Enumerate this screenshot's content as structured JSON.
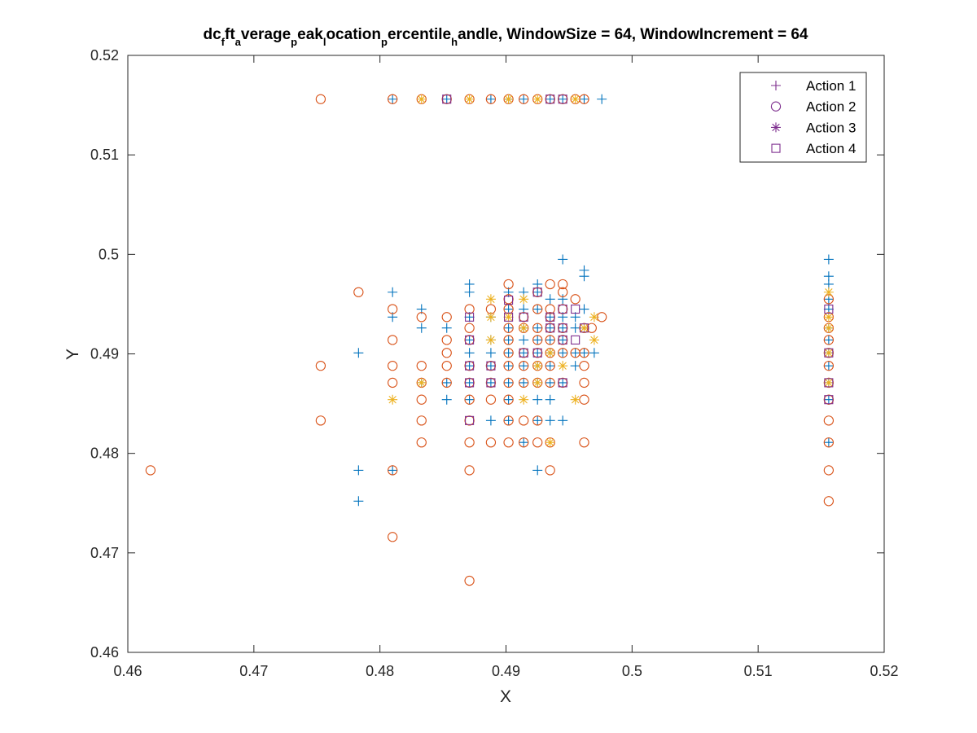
{
  "chart_data": {
    "type": "scatter",
    "title_parts": [
      {
        "t": "dc",
        "sub": false
      },
      {
        "t": "f",
        "sub": true
      },
      {
        "t": "ft",
        "sub": false
      },
      {
        "t": "a",
        "sub": true
      },
      {
        "t": "verage",
        "sub": false
      },
      {
        "t": "p",
        "sub": true
      },
      {
        "t": "eak",
        "sub": false
      },
      {
        "t": "l",
        "sub": true
      },
      {
        "t": "ocation",
        "sub": false
      },
      {
        "t": "p",
        "sub": true
      },
      {
        "t": "ercentile",
        "sub": false
      },
      {
        "t": "h",
        "sub": true
      },
      {
        "t": "andle, WindowSize = 64, WindowIncrement = 64",
        "sub": false
      }
    ],
    "xlabel": "X",
    "ylabel": "Y",
    "xlim": [
      0.46,
      0.52
    ],
    "ylim": [
      0.46,
      0.52
    ],
    "xticks": [
      0.46,
      0.47,
      0.48,
      0.49,
      0.5,
      0.51,
      0.52
    ],
    "yticks": [
      0.46,
      0.47,
      0.48,
      0.49,
      0.5,
      0.51,
      0.52
    ],
    "xtick_labels": [
      "0.46",
      "0.47",
      "0.48",
      "0.49",
      "0.5",
      "0.51",
      "0.52"
    ],
    "ytick_labels": [
      "0.46",
      "0.47",
      "0.48",
      "0.49",
      "0.5",
      "0.51",
      "0.52"
    ],
    "grid": false,
    "legend_position": "top-right",
    "legend_color": "#7E2F8E",
    "series": [
      {
        "name": "Action 1",
        "marker": "plus",
        "color": "#0072BD",
        "points": [
          [
            0.481,
            0.5156
          ],
          [
            0.4853,
            0.5156
          ],
          [
            0.4888,
            0.5156
          ],
          [
            0.4902,
            0.5156
          ],
          [
            0.4914,
            0.5156
          ],
          [
            0.4935,
            0.5156
          ],
          [
            0.4945,
            0.5156
          ],
          [
            0.4962,
            0.5156
          ],
          [
            0.4976,
            0.5156
          ],
          [
            0.4783,
            0.4901
          ],
          [
            0.4783,
            0.4783
          ],
          [
            0.4783,
            0.4752
          ],
          [
            0.481,
            0.4962
          ],
          [
            0.481,
            0.4937
          ],
          [
            0.481,
            0.4783
          ],
          [
            0.4833,
            0.4945
          ],
          [
            0.4833,
            0.4926
          ],
          [
            0.4833,
            0.4871
          ],
          [
            0.4853,
            0.4926
          ],
          [
            0.4853,
            0.4871
          ],
          [
            0.4853,
            0.4854
          ],
          [
            0.4871,
            0.497
          ],
          [
            0.4871,
            0.4962
          ],
          [
            0.4871,
            0.4937
          ],
          [
            0.4871,
            0.4914
          ],
          [
            0.4871,
            0.4901
          ],
          [
            0.4871,
            0.4888
          ],
          [
            0.4871,
            0.4871
          ],
          [
            0.4871,
            0.4854
          ],
          [
            0.4888,
            0.4937
          ],
          [
            0.4888,
            0.4914
          ],
          [
            0.4888,
            0.4901
          ],
          [
            0.4888,
            0.4888
          ],
          [
            0.4888,
            0.4871
          ],
          [
            0.4888,
            0.4833
          ],
          [
            0.4902,
            0.4962
          ],
          [
            0.4902,
            0.4945
          ],
          [
            0.4902,
            0.4926
          ],
          [
            0.4902,
            0.4914
          ],
          [
            0.4902,
            0.4901
          ],
          [
            0.4902,
            0.4888
          ],
          [
            0.4902,
            0.4871
          ],
          [
            0.4902,
            0.4854
          ],
          [
            0.4902,
            0.4833
          ],
          [
            0.4914,
            0.4962
          ],
          [
            0.4914,
            0.4945
          ],
          [
            0.4914,
            0.4926
          ],
          [
            0.4914,
            0.4914
          ],
          [
            0.4914,
            0.4901
          ],
          [
            0.4914,
            0.4888
          ],
          [
            0.4914,
            0.4871
          ],
          [
            0.4914,
            0.4811
          ],
          [
            0.4925,
            0.497
          ],
          [
            0.4925,
            0.4962
          ],
          [
            0.4925,
            0.4945
          ],
          [
            0.4925,
            0.4926
          ],
          [
            0.4925,
            0.4914
          ],
          [
            0.4925,
            0.4901
          ],
          [
            0.4925,
            0.4888
          ],
          [
            0.4925,
            0.4871
          ],
          [
            0.4925,
            0.4854
          ],
          [
            0.4925,
            0.4833
          ],
          [
            0.4925,
            0.4783
          ],
          [
            0.4935,
            0.4955
          ],
          [
            0.4935,
            0.4937
          ],
          [
            0.4935,
            0.4926
          ],
          [
            0.4935,
            0.4914
          ],
          [
            0.4935,
            0.4901
          ],
          [
            0.4935,
            0.4888
          ],
          [
            0.4935,
            0.4871
          ],
          [
            0.4935,
            0.4854
          ],
          [
            0.4935,
            0.4833
          ],
          [
            0.4945,
            0.4995
          ],
          [
            0.4945,
            0.4955
          ],
          [
            0.4945,
            0.4937
          ],
          [
            0.4945,
            0.4926
          ],
          [
            0.4945,
            0.4914
          ],
          [
            0.4945,
            0.4901
          ],
          [
            0.4945,
            0.4871
          ],
          [
            0.4945,
            0.4833
          ],
          [
            0.4955,
            0.4937
          ],
          [
            0.4955,
            0.4926
          ],
          [
            0.4955,
            0.4901
          ],
          [
            0.4955,
            0.4888
          ],
          [
            0.4962,
            0.4984
          ],
          [
            0.4962,
            0.4978
          ],
          [
            0.4962,
            0.4945
          ],
          [
            0.4962,
            0.4926
          ],
          [
            0.4962,
            0.4901
          ],
          [
            0.497,
            0.4901
          ],
          [
            0.5156,
            0.4995
          ],
          [
            0.5156,
            0.4978
          ],
          [
            0.5156,
            0.497
          ],
          [
            0.5156,
            0.4955
          ],
          [
            0.5156,
            0.4945
          ],
          [
            0.5156,
            0.4926
          ],
          [
            0.5156,
            0.4914
          ],
          [
            0.5156,
            0.4901
          ],
          [
            0.5156,
            0.4888
          ],
          [
            0.5156,
            0.4871
          ],
          [
            0.5156,
            0.4854
          ],
          [
            0.5156,
            0.4811
          ]
        ]
      },
      {
        "name": "Action 2",
        "marker": "circle",
        "color": "#D95319",
        "points": [
          [
            0.4753,
            0.5156
          ],
          [
            0.481,
            0.5156
          ],
          [
            0.4833,
            0.5156
          ],
          [
            0.4853,
            0.5156
          ],
          [
            0.4871,
            0.5156
          ],
          [
            0.4888,
            0.5156
          ],
          [
            0.4902,
            0.5156
          ],
          [
            0.4914,
            0.5156
          ],
          [
            0.4925,
            0.5156
          ],
          [
            0.4935,
            0.5156
          ],
          [
            0.4945,
            0.5156
          ],
          [
            0.4955,
            0.5156
          ],
          [
            0.4962,
            0.5156
          ],
          [
            0.4618,
            0.4783
          ],
          [
            0.4753,
            0.4888
          ],
          [
            0.4753,
            0.4833
          ],
          [
            0.4783,
            0.4962
          ],
          [
            0.481,
            0.4945
          ],
          [
            0.481,
            0.4914
          ],
          [
            0.481,
            0.4888
          ],
          [
            0.481,
            0.4871
          ],
          [
            0.481,
            0.4783
          ],
          [
            0.481,
            0.4716
          ],
          [
            0.4833,
            0.4937
          ],
          [
            0.4833,
            0.4888
          ],
          [
            0.4833,
            0.4871
          ],
          [
            0.4833,
            0.4854
          ],
          [
            0.4833,
            0.4833
          ],
          [
            0.4833,
            0.4811
          ],
          [
            0.4853,
            0.4937
          ],
          [
            0.4853,
            0.4914
          ],
          [
            0.4853,
            0.4901
          ],
          [
            0.4853,
            0.4888
          ],
          [
            0.4853,
            0.4871
          ],
          [
            0.4871,
            0.4945
          ],
          [
            0.4871,
            0.4926
          ],
          [
            0.4871,
            0.4914
          ],
          [
            0.4871,
            0.4888
          ],
          [
            0.4871,
            0.4871
          ],
          [
            0.4871,
            0.4854
          ],
          [
            0.4871,
            0.4833
          ],
          [
            0.4871,
            0.4811
          ],
          [
            0.4871,
            0.4783
          ],
          [
            0.4871,
            0.4672
          ],
          [
            0.4888,
            0.4945
          ],
          [
            0.4888,
            0.4888
          ],
          [
            0.4888,
            0.4871
          ],
          [
            0.4888,
            0.4854
          ],
          [
            0.4888,
            0.4811
          ],
          [
            0.4902,
            0.497
          ],
          [
            0.4902,
            0.4955
          ],
          [
            0.4902,
            0.4945
          ],
          [
            0.4902,
            0.4926
          ],
          [
            0.4902,
            0.4914
          ],
          [
            0.4902,
            0.4901
          ],
          [
            0.4902,
            0.4888
          ],
          [
            0.4902,
            0.4871
          ],
          [
            0.4902,
            0.4854
          ],
          [
            0.4902,
            0.4833
          ],
          [
            0.4902,
            0.4811
          ],
          [
            0.4914,
            0.4937
          ],
          [
            0.4914,
            0.4926
          ],
          [
            0.4914,
            0.4901
          ],
          [
            0.4914,
            0.4888
          ],
          [
            0.4914,
            0.4871
          ],
          [
            0.4914,
            0.4833
          ],
          [
            0.4914,
            0.4811
          ],
          [
            0.4925,
            0.4962
          ],
          [
            0.4925,
            0.4945
          ],
          [
            0.4925,
            0.4926
          ],
          [
            0.4925,
            0.4914
          ],
          [
            0.4925,
            0.4901
          ],
          [
            0.4925,
            0.4888
          ],
          [
            0.4925,
            0.4871
          ],
          [
            0.4925,
            0.4833
          ],
          [
            0.4925,
            0.4811
          ],
          [
            0.4935,
            0.497
          ],
          [
            0.4935,
            0.4945
          ],
          [
            0.4935,
            0.4937
          ],
          [
            0.4935,
            0.4926
          ],
          [
            0.4935,
            0.4914
          ],
          [
            0.4935,
            0.4901
          ],
          [
            0.4935,
            0.4888
          ],
          [
            0.4935,
            0.4871
          ],
          [
            0.4935,
            0.4811
          ],
          [
            0.4935,
            0.4783
          ],
          [
            0.4945,
            0.497
          ],
          [
            0.4945,
            0.4962
          ],
          [
            0.4945,
            0.4945
          ],
          [
            0.4945,
            0.4926
          ],
          [
            0.4945,
            0.4914
          ],
          [
            0.4945,
            0.4901
          ],
          [
            0.4945,
            0.4871
          ],
          [
            0.4955,
            0.4955
          ],
          [
            0.4955,
            0.4901
          ],
          [
            0.4962,
            0.4926
          ],
          [
            0.4962,
            0.4901
          ],
          [
            0.4962,
            0.4888
          ],
          [
            0.4962,
            0.4871
          ],
          [
            0.4962,
            0.4854
          ],
          [
            0.4962,
            0.4811
          ],
          [
            0.4968,
            0.4926
          ],
          [
            0.4976,
            0.4937
          ],
          [
            0.5156,
            0.4955
          ],
          [
            0.5156,
            0.4937
          ],
          [
            0.5156,
            0.4926
          ],
          [
            0.5156,
            0.4914
          ],
          [
            0.5156,
            0.4901
          ],
          [
            0.5156,
            0.4888
          ],
          [
            0.5156,
            0.4871
          ],
          [
            0.5156,
            0.4854
          ],
          [
            0.5156,
            0.4833
          ],
          [
            0.5156,
            0.4811
          ],
          [
            0.5156,
            0.4783
          ],
          [
            0.5156,
            0.4752
          ]
        ]
      },
      {
        "name": "Action 3",
        "marker": "asterisk",
        "color": "#EDB120",
        "points": [
          [
            0.4833,
            0.5156
          ],
          [
            0.4871,
            0.5156
          ],
          [
            0.4902,
            0.5156
          ],
          [
            0.4925,
            0.5156
          ],
          [
            0.4955,
            0.5156
          ],
          [
            0.481,
            0.4854
          ],
          [
            0.4833,
            0.4871
          ],
          [
            0.4888,
            0.4955
          ],
          [
            0.4888,
            0.4937
          ],
          [
            0.4888,
            0.4914
          ],
          [
            0.4902,
            0.4937
          ],
          [
            0.4914,
            0.4955
          ],
          [
            0.4914,
            0.4926
          ],
          [
            0.4914,
            0.4854
          ],
          [
            0.4925,
            0.4888
          ],
          [
            0.4925,
            0.4871
          ],
          [
            0.4935,
            0.4901
          ],
          [
            0.4935,
            0.4811
          ],
          [
            0.4945,
            0.4888
          ],
          [
            0.4955,
            0.4854
          ],
          [
            0.4962,
            0.4926
          ],
          [
            0.497,
            0.4937
          ],
          [
            0.497,
            0.4914
          ],
          [
            0.5156,
            0.4962
          ],
          [
            0.5156,
            0.4937
          ],
          [
            0.5156,
            0.4926
          ],
          [
            0.5156,
            0.4901
          ],
          [
            0.5156,
            0.4871
          ]
        ]
      },
      {
        "name": "Action 4",
        "marker": "square",
        "color": "#7E2F8E",
        "points": [
          [
            0.4853,
            0.5156
          ],
          [
            0.4935,
            0.5156
          ],
          [
            0.4945,
            0.5156
          ],
          [
            0.4871,
            0.4937
          ],
          [
            0.4871,
            0.4914
          ],
          [
            0.4871,
            0.4888
          ],
          [
            0.4871,
            0.4871
          ],
          [
            0.4871,
            0.4833
          ],
          [
            0.4888,
            0.4888
          ],
          [
            0.4888,
            0.4871
          ],
          [
            0.4902,
            0.4954
          ],
          [
            0.4902,
            0.4937
          ],
          [
            0.4914,
            0.4937
          ],
          [
            0.4914,
            0.4901
          ],
          [
            0.4925,
            0.4962
          ],
          [
            0.4925,
            0.4901
          ],
          [
            0.4935,
            0.4937
          ],
          [
            0.4935,
            0.4926
          ],
          [
            0.4945,
            0.4945
          ],
          [
            0.4945,
            0.4926
          ],
          [
            0.4945,
            0.4914
          ],
          [
            0.4945,
            0.4871
          ],
          [
            0.4955,
            0.4945
          ],
          [
            0.4955,
            0.4914
          ],
          [
            0.4962,
            0.4926
          ],
          [
            0.5156,
            0.4945
          ],
          [
            0.5156,
            0.4901
          ],
          [
            0.5156,
            0.4871
          ],
          [
            0.5156,
            0.4854
          ]
        ]
      }
    ]
  }
}
